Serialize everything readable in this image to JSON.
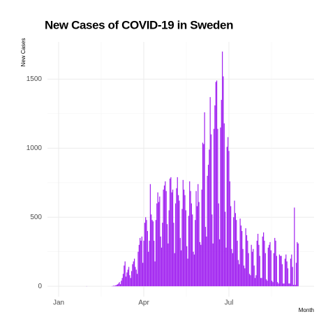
{
  "chart_data": {
    "type": "bar",
    "title": "New Cases of COVID-19 in Sweden",
    "x_label": "Month",
    "y_label": "New Cases",
    "color": "#a020f0",
    "grid": true,
    "ylim": [
      -75,
      1770
    ],
    "yticks": [
      0,
      500,
      1000,
      1500
    ],
    "categories": [
      "Jan",
      null,
      null,
      null,
      null,
      null,
      null,
      null,
      null,
      null,
      null,
      null,
      null,
      null,
      null,
      null,
      null,
      null,
      null,
      null,
      null,
      null,
      null,
      null,
      null,
      null,
      null,
      null,
      null,
      null,
      null,
      null,
      null,
      null,
      null,
      null,
      null,
      null,
      null,
      null,
      null,
      null,
      null,
      null,
      null,
      null,
      null,
      null,
      null,
      null,
      null,
      null,
      null,
      null,
      null,
      null,
      null,
      null,
      null,
      null,
      null,
      null,
      null,
      null,
      null,
      null,
      null,
      null,
      null,
      null,
      null,
      null,
      null,
      null,
      null,
      null,
      null,
      null,
      null,
      null,
      null,
      null,
      null,
      null,
      null,
      null,
      null,
      null,
      null,
      null,
      null,
      "Apr",
      null,
      null,
      null,
      null,
      null,
      null,
      null,
      null,
      null,
      null,
      null,
      null,
      null,
      null,
      null,
      null,
      null,
      null,
      null,
      null,
      null,
      null,
      null,
      null,
      null,
      null,
      null,
      null,
      null,
      null,
      null,
      null,
      null,
      null,
      null,
      null,
      null,
      null,
      null,
      null,
      null,
      null,
      null,
      null,
      null,
      null,
      null,
      null,
      null,
      null,
      null,
      null,
      null,
      null,
      null,
      null,
      null,
      null,
      null,
      null,
      null,
      null,
      null,
      null,
      null,
      null,
      null,
      null,
      null,
      null,
      null,
      null,
      null,
      null,
      null,
      null,
      null,
      null,
      null,
      null,
      null,
      null,
      null,
      null,
      null,
      null,
      null,
      null,
      null,
      null,
      "Jul",
      null,
      null,
      null,
      null,
      null,
      null,
      null,
      null,
      null,
      null,
      null,
      null,
      null,
      null,
      null,
      null,
      null,
      null,
      null,
      null,
      null,
      null,
      null,
      null,
      null,
      null,
      null,
      null,
      null,
      null,
      null,
      null,
      null,
      null,
      null,
      null,
      null,
      null,
      null,
      null,
      null,
      null,
      null,
      null,
      null,
      null,
      null,
      null,
      null,
      null,
      null,
      null,
      null,
      null,
      null,
      null,
      null,
      null,
      null,
      null,
      null,
      null,
      null,
      null,
      null,
      null,
      null,
      null,
      null,
      null,
      null,
      null,
      null,
      null
    ],
    "values": [
      0,
      0,
      0,
      0,
      0,
      0,
      0,
      0,
      0,
      0,
      0,
      0,
      0,
      0,
      0,
      0,
      0,
      0,
      0,
      0,
      0,
      0,
      0,
      0,
      0,
      0,
      0,
      0,
      0,
      0,
      1,
      0,
      0,
      0,
      0,
      0,
      0,
      0,
      0,
      0,
      0,
      0,
      0,
      0,
      0,
      0,
      0,
      0,
      0,
      0,
      0,
      0,
      0,
      0,
      0,
      0,
      0,
      1,
      2,
      5,
      3,
      7,
      10,
      14,
      20,
      30,
      15,
      40,
      60,
      90,
      150,
      180,
      70,
      100,
      120,
      140,
      80,
      60,
      110,
      160,
      180,
      200,
      140,
      120,
      90,
      250,
      300,
      350,
      330,
      360,
      170,
      330,
      460,
      500,
      480,
      400,
      250,
      330,
      740,
      520,
      480,
      470,
      330,
      180,
      480,
      600,
      680,
      610,
      650,
      360,
      280,
      460,
      700,
      730,
      760,
      690,
      450,
      310,
      550,
      780,
      790,
      680,
      700,
      460,
      240,
      600,
      710,
      790,
      660,
      620,
      350,
      260,
      560,
      770,
      700,
      660,
      550,
      290,
      200,
      510,
      760,
      690,
      600,
      520,
      250,
      230,
      480,
      690,
      580,
      740,
      610,
      320,
      300,
      700,
      1040,
      1030,
      1260,
      430,
      360,
      800,
      880,
      990,
      1370,
      1100,
      520,
      310,
      1140,
      1310,
      1480,
      1490,
      1140,
      600,
      340,
      1150,
      1350,
      1700,
      1520,
      1180,
      540,
      280,
      1010,
      1080,
      980,
      760,
      580,
      270,
      240,
      500,
      620,
      530,
      480,
      330,
      190,
      160,
      490,
      440,
      400,
      270,
      150,
      130,
      420,
      370,
      330,
      240,
      90,
      80,
      300,
      250,
      270,
      150,
      60,
      80,
      330,
      380,
      300,
      220,
      60,
      60,
      360,
      390,
      330,
      240,
      50,
      40,
      280,
      300,
      320,
      260,
      40,
      30,
      240,
      350,
      330,
      220,
      30,
      20,
      230,
      220,
      220,
      160,
      20,
      20,
      200,
      230,
      180,
      130,
      20,
      20,
      200,
      230,
      140,
      10,
      570,
      10,
      170,
      320,
      310
    ]
  }
}
